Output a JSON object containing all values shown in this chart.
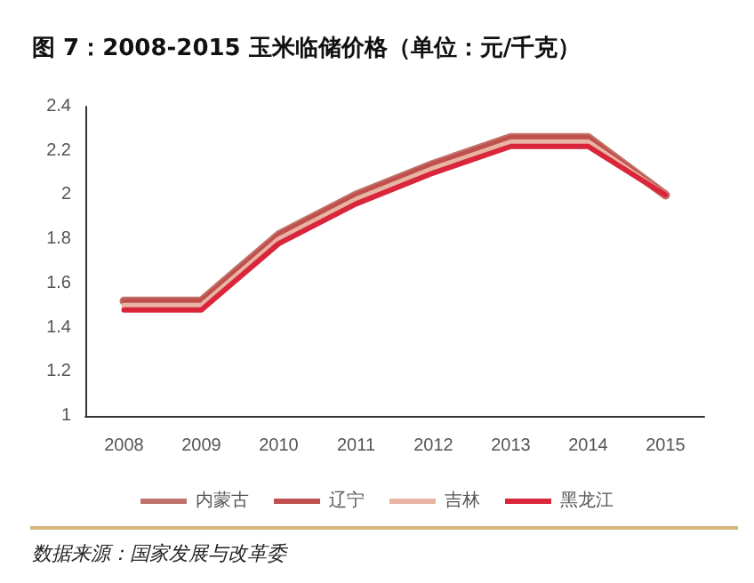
{
  "chart_data": {
    "type": "line",
    "title": "图 7：2008-2015 玉米临储价格（单位：元/千克）",
    "categories": [
      "2008",
      "2009",
      "2010",
      "2011",
      "2012",
      "2013",
      "2014",
      "2015"
    ],
    "series": [
      {
        "name": "内蒙古",
        "color": "#c0736a",
        "values": [
          1.52,
          1.52,
          1.82,
          2.0,
          2.14,
          2.26,
          2.26,
          2.0
        ]
      },
      {
        "name": "辽宁",
        "color": "#c0504d",
        "values": [
          1.52,
          1.52,
          1.82,
          2.0,
          2.14,
          2.26,
          2.26,
          2.0
        ]
      },
      {
        "name": "吉林",
        "color": "#e8b4a4",
        "values": [
          1.5,
          1.5,
          1.8,
          1.98,
          2.12,
          2.24,
          2.24,
          2.0
        ]
      },
      {
        "name": "黑龙江",
        "color": "#d9263b",
        "values": [
          1.48,
          1.48,
          1.78,
          1.96,
          2.1,
          2.22,
          2.22,
          2.0
        ]
      }
    ],
    "ylim": [
      1,
      2.4
    ],
    "yticks": [
      1,
      1.2,
      1.4,
      1.6,
      1.8,
      2,
      2.2,
      2.4
    ],
    "grid": false,
    "legend": "bottom",
    "marker": "none",
    "line_style": "solid",
    "annotations": [
      "数据来源：国家发展与改革委"
    ]
  }
}
